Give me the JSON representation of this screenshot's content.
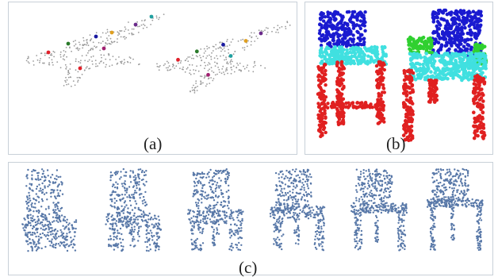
{
  "panels": {
    "a": {
      "caption": "(a)"
    },
    "b": {
      "caption": "(b)"
    },
    "c": {
      "caption": "(c)"
    }
  },
  "colors": {
    "sparse_points": "#9a9a9a",
    "keypoints": [
      "#e0202a",
      "#2a7a2a",
      "#1a1aa0",
      "#e0a020",
      "#6a2a8a",
      "#20a0a0",
      "#a02070"
    ],
    "jet_gradient": [
      "#2aa0a0",
      "#7aa0c0",
      "#c060b0",
      "#a070d0",
      "#6060d8"
    ],
    "chair_back": "#1a1ad0",
    "chair_seat": "#40e0e0",
    "chair_legs": "#e02020",
    "chair_armrest": "#30d030",
    "morph_points": "#5878a8"
  }
}
